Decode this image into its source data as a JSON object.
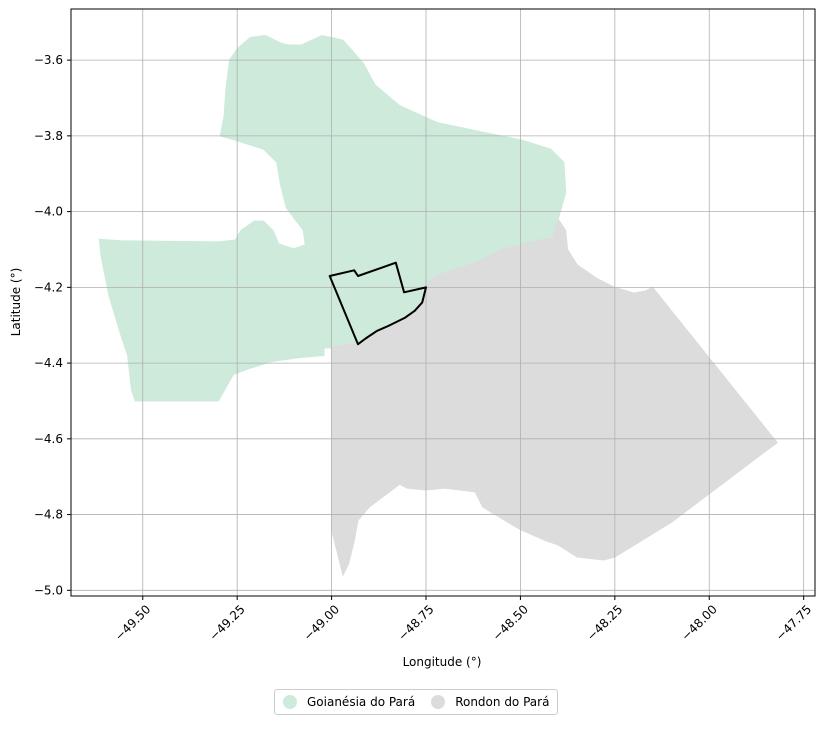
{
  "chart_data": {
    "type": "map",
    "xlabel": "Longitude (°)",
    "ylabel": "Latitude (°)",
    "xlim": [
      -49.69,
      -47.72
    ],
    "ylim": [
      -5.015,
      -3.465
    ],
    "x_ticks": [
      -49.5,
      -49.25,
      -49.0,
      -48.75,
      -48.5,
      -48.25,
      -48.0,
      -47.75
    ],
    "x_tick_labels": [
      "−49.50",
      "−49.25",
      "−49.00",
      "−48.75",
      "−48.50",
      "−48.25",
      "−48.00",
      "−47.75"
    ],
    "y_ticks": [
      -3.6,
      -3.8,
      -4.0,
      -4.2,
      -4.4,
      -4.6,
      -4.8,
      -5.0
    ],
    "y_tick_labels": [
      "−3.6",
      "−3.8",
      "−4.0",
      "−4.2",
      "−4.4",
      "−4.6",
      "−4.8",
      "−5.0"
    ],
    "grid": true,
    "legend_position": "bottom-center",
    "regions": [
      {
        "name": "Goianésia do Pará",
        "color": "#cdeadb",
        "polygon": [
          [
            -49.615,
            -4.073
          ],
          [
            -49.56,
            -4.077
          ],
          [
            -49.48,
            -4.078
          ],
          [
            -49.3,
            -4.08
          ],
          [
            -49.255,
            -4.075
          ],
          [
            -49.24,
            -4.05
          ],
          [
            -49.205,
            -4.025
          ],
          [
            -49.18,
            -4.025
          ],
          [
            -49.155,
            -4.05
          ],
          [
            -49.14,
            -4.085
          ],
          [
            -49.1,
            -4.098
          ],
          [
            -49.07,
            -4.088
          ],
          [
            -49.075,
            -4.05
          ],
          [
            -49.12,
            -3.99
          ],
          [
            -49.135,
            -3.93
          ],
          [
            -49.145,
            -3.87
          ],
          [
            -49.18,
            -3.835
          ],
          [
            -49.26,
            -3.81
          ],
          [
            -49.295,
            -3.8
          ],
          [
            -49.285,
            -3.75
          ],
          [
            -49.28,
            -3.68
          ],
          [
            -49.27,
            -3.6
          ],
          [
            -49.25,
            -3.57
          ],
          [
            -49.215,
            -3.54
          ],
          [
            -49.175,
            -3.535
          ],
          [
            -49.135,
            -3.555
          ],
          [
            -49.115,
            -3.56
          ],
          [
            -49.08,
            -3.56
          ],
          [
            -49.025,
            -3.535
          ],
          [
            -48.97,
            -3.547
          ],
          [
            -48.945,
            -3.575
          ],
          [
            -48.915,
            -3.61
          ],
          [
            -48.885,
            -3.665
          ],
          [
            -48.82,
            -3.72
          ],
          [
            -48.72,
            -3.765
          ],
          [
            -48.6,
            -3.79
          ],
          [
            -48.5,
            -3.81
          ],
          [
            -48.42,
            -3.835
          ],
          [
            -48.385,
            -3.87
          ],
          [
            -48.38,
            -3.95
          ],
          [
            -48.4,
            -4.02
          ],
          [
            -48.415,
            -4.07
          ],
          [
            -48.45,
            -4.075
          ],
          [
            -48.55,
            -4.1
          ],
          [
            -48.62,
            -4.135
          ],
          [
            -48.72,
            -4.168
          ],
          [
            -48.75,
            -4.19
          ],
          [
            -48.76,
            -4.23
          ],
          [
            -48.78,
            -4.265
          ],
          [
            -48.8,
            -4.28
          ],
          [
            -48.85,
            -4.3
          ],
          [
            -48.9,
            -4.33
          ],
          [
            -48.93,
            -4.35
          ],
          [
            -48.96,
            -4.35
          ],
          [
            -49.0,
            -4.36
          ],
          [
            -49.02,
            -4.36
          ],
          [
            -49.02,
            -4.38
          ],
          [
            -49.08,
            -4.385
          ],
          [
            -49.155,
            -4.395
          ],
          [
            -49.22,
            -4.415
          ],
          [
            -49.26,
            -4.43
          ],
          [
            -49.3,
            -4.5
          ],
          [
            -49.42,
            -4.5
          ],
          [
            -49.52,
            -4.5
          ],
          [
            -49.53,
            -4.47
          ],
          [
            -49.54,
            -4.38
          ],
          [
            -49.56,
            -4.32
          ],
          [
            -49.59,
            -4.22
          ],
          [
            -49.61,
            -4.12
          ]
        ]
      },
      {
        "name": "Rondon do Pará",
        "color": "#dcdcdc",
        "polygon": [
          [
            -48.76,
            -4.23
          ],
          [
            -48.75,
            -4.19
          ],
          [
            -48.72,
            -4.168
          ],
          [
            -48.62,
            -4.135
          ],
          [
            -48.55,
            -4.1
          ],
          [
            -48.45,
            -4.075
          ],
          [
            -48.415,
            -4.07
          ],
          [
            -48.4,
            -4.02
          ],
          [
            -48.38,
            -4.05
          ],
          [
            -48.375,
            -4.1
          ],
          [
            -48.35,
            -4.14
          ],
          [
            -48.3,
            -4.175
          ],
          [
            -48.25,
            -4.2
          ],
          [
            -48.2,
            -4.215
          ],
          [
            -48.17,
            -4.21
          ],
          [
            -48.15,
            -4.2
          ],
          [
            -47.82,
            -4.61
          ],
          [
            -48.1,
            -4.82
          ],
          [
            -48.25,
            -4.912
          ],
          [
            -48.28,
            -4.92
          ],
          [
            -48.35,
            -4.912
          ],
          [
            -48.4,
            -4.88
          ],
          [
            -48.43,
            -4.87
          ],
          [
            -48.5,
            -4.84
          ],
          [
            -48.55,
            -4.81
          ],
          [
            -48.6,
            -4.78
          ],
          [
            -48.62,
            -4.74
          ],
          [
            -48.7,
            -4.73
          ],
          [
            -48.75,
            -4.735
          ],
          [
            -48.8,
            -4.73
          ],
          [
            -48.82,
            -4.72
          ],
          [
            -48.9,
            -4.78
          ],
          [
            -48.93,
            -4.815
          ],
          [
            -48.94,
            -4.87
          ],
          [
            -48.955,
            -4.93
          ],
          [
            -48.97,
            -4.96
          ],
          [
            -49.0,
            -4.84
          ],
          [
            -49.0,
            -4.36
          ],
          [
            -48.96,
            -4.35
          ],
          [
            -48.93,
            -4.35
          ],
          [
            -48.9,
            -4.33
          ],
          [
            -48.85,
            -4.3
          ],
          [
            -48.8,
            -4.28
          ],
          [
            -48.78,
            -4.265
          ]
        ]
      }
    ],
    "highlight_outline": {
      "color": "#000000",
      "polygon": [
        [
          -49.005,
          -4.17
        ],
        [
          -48.94,
          -4.155
        ],
        [
          -48.93,
          -4.17
        ],
        [
          -48.83,
          -4.135
        ],
        [
          -48.808,
          -4.213
        ],
        [
          -48.75,
          -4.2
        ],
        [
          -48.76,
          -4.24
        ],
        [
          -48.78,
          -4.262
        ],
        [
          -48.805,
          -4.28
        ],
        [
          -48.85,
          -4.302
        ],
        [
          -48.88,
          -4.315
        ],
        [
          -48.91,
          -4.335
        ],
        [
          -48.93,
          -4.35
        ]
      ]
    }
  },
  "legend": {
    "items": [
      {
        "label": "Goianésia do Pará",
        "color": "#cdeadb"
      },
      {
        "label": "Rondon do Pará",
        "color": "#dcdcdc"
      }
    ]
  }
}
